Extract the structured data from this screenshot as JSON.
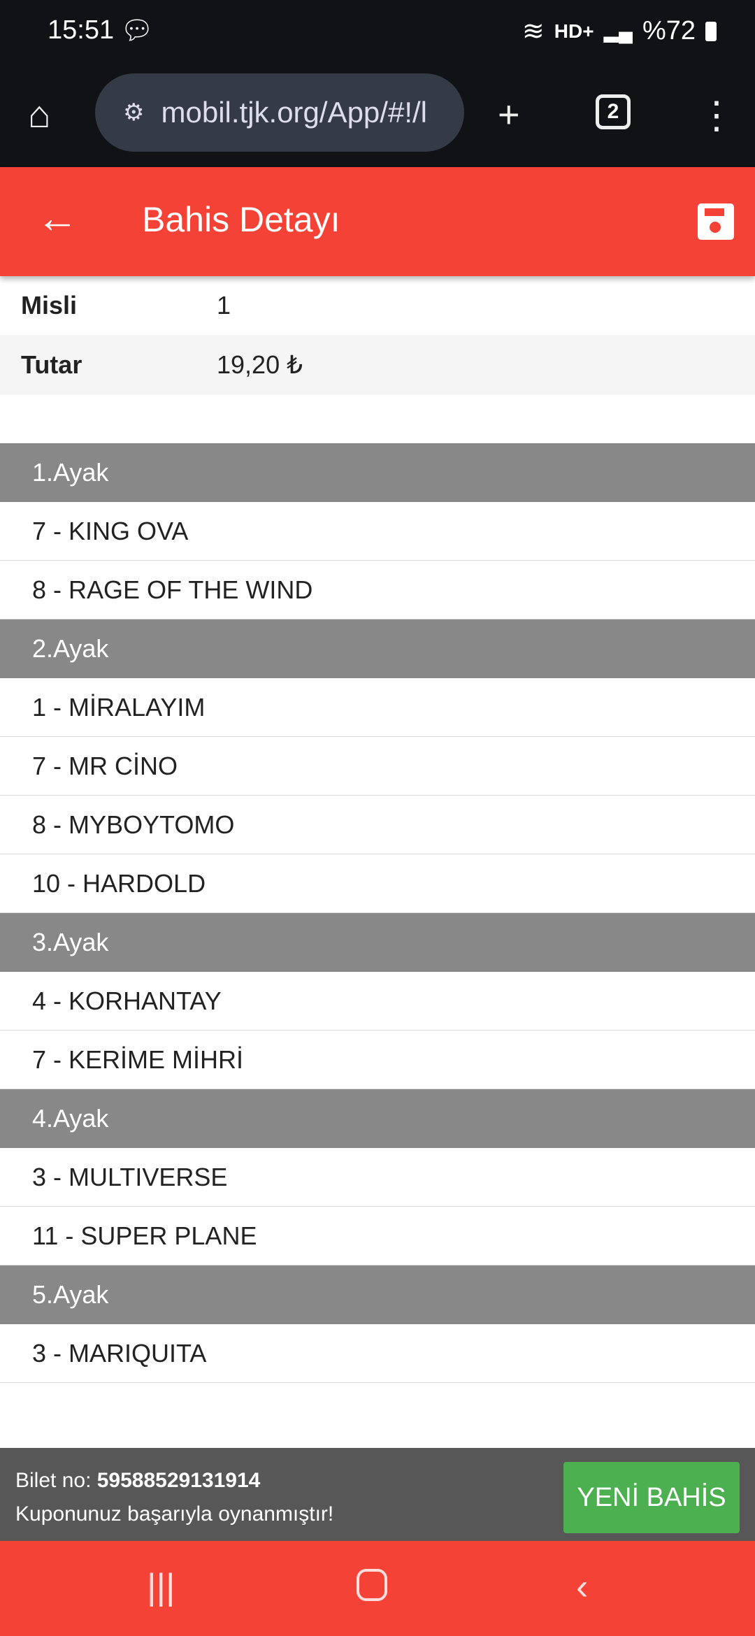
{
  "status_bar": {
    "time": "15:51",
    "network": "HD+",
    "battery": "%72"
  },
  "browser": {
    "url": "mobil.tjk.org/App/#!/l",
    "tab_count": "2"
  },
  "app_bar": {
    "title": "Bahis Detayı"
  },
  "info": [
    {
      "label": "Misli",
      "value": "1"
    },
    {
      "label": "Tutar",
      "value": "19,20 ₺"
    }
  ],
  "legs": [
    {
      "title": "1.Ayak",
      "horses": [
        "7 - KING OVA",
        "8 - RAGE OF THE WIND"
      ]
    },
    {
      "title": "2.Ayak",
      "horses": [
        "1 - MİRALAYIM",
        "7 - MR CİNO",
        "8 - MYBOYTOMO",
        "10 - HARDOLD"
      ]
    },
    {
      "title": "3.Ayak",
      "horses": [
        "4 - KORHANTAY",
        "7 - KERİME MİHRİ"
      ]
    },
    {
      "title": "4.Ayak",
      "horses": [
        "3 - MULTIVERSE",
        "11 - SUPER PLANE"
      ]
    },
    {
      "title": "5.Ayak",
      "horses": [
        "3 - MARIQUITA"
      ]
    }
  ],
  "footer": {
    "ticket_label": "Bilet no:",
    "ticket_no": "59588529131914",
    "message": "Kuponunuz başarıyla oynanmıştır!",
    "new_bet_label": "YENİ BAHİS"
  },
  "colors": {
    "primary": "#f44336",
    "section": "#888888",
    "success": "#4caf50"
  }
}
